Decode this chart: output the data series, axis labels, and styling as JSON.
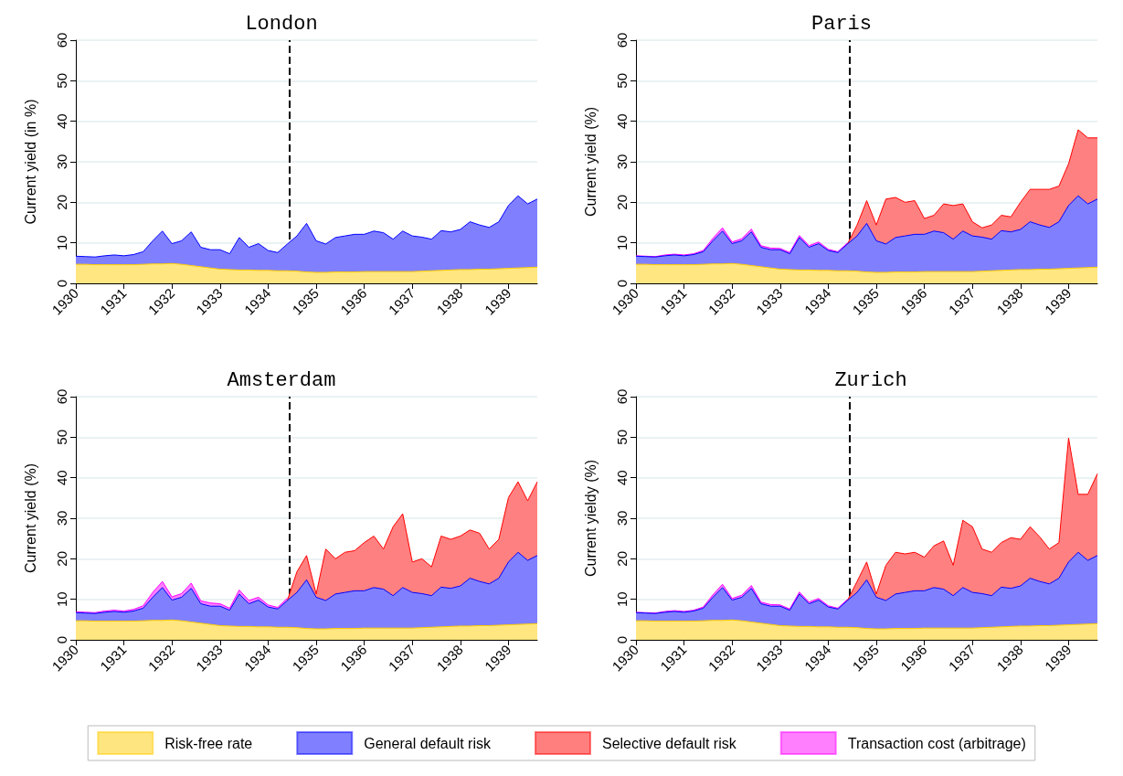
{
  "chart_data": [
    {
      "type": "area",
      "title": "London",
      "ylabel": "Current yield (in %)",
      "stacked": true,
      "grid": "y",
      "x": [
        1930.0,
        1930.2,
        1930.4,
        1930.6,
        1930.8,
        1931.0,
        1931.2,
        1931.4,
        1931.6,
        1931.8,
        1932.0,
        1932.2,
        1932.4,
        1932.6,
        1932.8,
        1933.0,
        1933.2,
        1933.4,
        1933.6,
        1933.8,
        1934.0,
        1934.2,
        1934.4,
        1934.6,
        1934.8,
        1935.0,
        1935.2,
        1935.4,
        1935.6,
        1935.8,
        1936.0,
        1936.2,
        1936.4,
        1936.6,
        1936.8,
        1937.0,
        1937.2,
        1937.4,
        1937.6,
        1937.8,
        1938.0,
        1938.2,
        1938.4,
        1938.6,
        1938.8,
        1939.0,
        1939.2,
        1939.4,
        1939.6
      ],
      "xlim": [
        1930,
        1939.6
      ],
      "xticks": [
        1930,
        1931,
        1932,
        1933,
        1934,
        1935,
        1936,
        1937,
        1938,
        1939
      ],
      "ylim": [
        0,
        60
      ],
      "yticks": [
        0,
        10,
        20,
        30,
        40,
        50,
        60
      ],
      "ref_lines": [
        {
          "axis": "x",
          "value": 1934.45,
          "color": "#000000",
          "line_style": "dashed"
        }
      ],
      "series": [
        {
          "color": "#ffcc00",
          "values": [
            4.7,
            4.7,
            4.6,
            4.6,
            4.6,
            4.6,
            4.6,
            4.7,
            4.8,
            4.8,
            4.9,
            4.7,
            4.4,
            4.1,
            3.8,
            3.5,
            3.4,
            3.3,
            3.3,
            3.2,
            3.2,
            3.1,
            3.1,
            3.0,
            2.8,
            2.7,
            2.7,
            2.8,
            2.8,
            2.8,
            2.9,
            2.9,
            2.9,
            2.9,
            2.9,
            2.9,
            3.0,
            3.1,
            3.2,
            3.3,
            3.4,
            3.4,
            3.5,
            3.5,
            3.6,
            3.7,
            3.8,
            3.9,
            4.0
          ]
        },
        {
          "color": "#0000ff",
          "values": [
            2.0,
            1.9,
            1.9,
            2.2,
            2.4,
            2.2,
            2.5,
            3.1,
            5.7,
            8.1,
            4.9,
            5.8,
            8.3,
            4.8,
            4.5,
            4.8,
            3.9,
            8.0,
            5.6,
            6.6,
            4.9,
            4.5,
            6.6,
            8.7,
            12.0,
            7.8,
            7.0,
            8.5,
            8.9,
            9.3,
            9.2,
            10.0,
            9.6,
            8.0,
            10.0,
            8.8,
            8.4,
            7.8,
            9.8,
            9.4,
            9.9,
            11.8,
            10.9,
            10.3,
            11.6,
            15.5,
            17.8,
            15.7,
            16.8
          ]
        }
      ]
    },
    {
      "type": "area",
      "title": "Paris",
      "ylabel": "Current yield (%)",
      "stacked": true,
      "grid": "y",
      "x": [
        1930.0,
        1930.2,
        1930.4,
        1930.6,
        1930.8,
        1931.0,
        1931.2,
        1931.4,
        1931.6,
        1931.8,
        1932.0,
        1932.2,
        1932.4,
        1932.6,
        1932.8,
        1933.0,
        1933.2,
        1933.4,
        1933.6,
        1933.8,
        1934.0,
        1934.2,
        1934.4,
        1934.6,
        1934.8,
        1935.0,
        1935.2,
        1935.4,
        1935.6,
        1935.8,
        1936.0,
        1936.2,
        1936.4,
        1936.6,
        1936.8,
        1937.0,
        1937.2,
        1937.4,
        1937.6,
        1937.8,
        1938.0,
        1938.2,
        1938.4,
        1938.6,
        1938.8,
        1939.0,
        1939.2,
        1939.4,
        1939.6
      ],
      "xlim": [
        1930,
        1939.6
      ],
      "xticks": [
        1930,
        1931,
        1932,
        1933,
        1934,
        1935,
        1936,
        1937,
        1938,
        1939
      ],
      "ylim": [
        0,
        60
      ],
      "yticks": [
        0,
        10,
        20,
        30,
        40,
        50,
        60
      ],
      "ref_lines": [
        {
          "axis": "x",
          "value": 1934.45,
          "color": "#000000",
          "line_style": "dashed"
        }
      ],
      "series": [
        {
          "color": "#ffcc00",
          "values": [
            4.7,
            4.7,
            4.6,
            4.6,
            4.6,
            4.6,
            4.6,
            4.7,
            4.8,
            4.8,
            4.9,
            4.7,
            4.4,
            4.1,
            3.8,
            3.5,
            3.4,
            3.3,
            3.3,
            3.2,
            3.2,
            3.1,
            3.1,
            3.0,
            2.8,
            2.7,
            2.7,
            2.8,
            2.8,
            2.8,
            2.9,
            2.9,
            2.9,
            2.9,
            2.9,
            2.9,
            3.0,
            3.1,
            3.2,
            3.3,
            3.4,
            3.4,
            3.5,
            3.5,
            3.6,
            3.7,
            3.8,
            3.9,
            4.0
          ]
        },
        {
          "color": "#0000ff",
          "values": [
            2.0,
            1.9,
            1.9,
            2.2,
            2.4,
            2.2,
            2.5,
            3.1,
            5.7,
            8.1,
            4.9,
            5.8,
            8.3,
            4.8,
            4.5,
            4.8,
            3.9,
            8.0,
            5.6,
            6.6,
            4.9,
            4.5,
            6.6,
            8.7,
            12.0,
            7.8,
            7.0,
            8.5,
            8.9,
            9.3,
            9.2,
            10.0,
            9.6,
            8.0,
            10.0,
            8.8,
            8.4,
            7.8,
            9.8,
            9.4,
            9.9,
            11.8,
            10.9,
            10.3,
            11.6,
            15.5,
            17.8,
            15.7,
            16.8
          ]
        },
        {
          "color": "#ff0000",
          "values": [
            null,
            null,
            null,
            null,
            null,
            null,
            null,
            null,
            null,
            null,
            null,
            null,
            null,
            null,
            null,
            null,
            null,
            null,
            null,
            null,
            null,
            null,
            0,
            2.7,
            5.6,
            3.9,
            11.1,
            9.9,
            8.3,
            8.3,
            3.9,
            3.9,
            7.1,
            8.3,
            6.7,
            3.5,
            2.3,
            3.5,
            3.8,
            3.7,
            6.7,
            8.0,
            8.8,
            9.4,
            8.8,
            10.3,
            16.3,
            16.3,
            15.1
          ]
        },
        {
          "color": "#ff00ff",
          "values": [
            0.1,
            0.1,
            0.1,
            0.2,
            0.2,
            0.2,
            0.2,
            0.3,
            0.6,
            0.8,
            0.4,
            0.5,
            0.7,
            0.4,
            0.4,
            0.3,
            0.3,
            0.5,
            0.4,
            0.4,
            0.3,
            0.2,
            0.3,
            null,
            null,
            null,
            null,
            null,
            null,
            null,
            null,
            null,
            null,
            null,
            null,
            null,
            null,
            null,
            null,
            null,
            null,
            null,
            null,
            null,
            null,
            null,
            null,
            null,
            null
          ]
        }
      ]
    },
    {
      "type": "area",
      "title": "Amsterdam",
      "ylabel": "Current yield (%)",
      "stacked": true,
      "grid": "y",
      "x": [
        1930.0,
        1930.2,
        1930.4,
        1930.6,
        1930.8,
        1931.0,
        1931.2,
        1931.4,
        1931.6,
        1931.8,
        1932.0,
        1932.2,
        1932.4,
        1932.6,
        1932.8,
        1933.0,
        1933.2,
        1933.4,
        1933.6,
        1933.8,
        1934.0,
        1934.2,
        1934.4,
        1934.6,
        1934.8,
        1935.0,
        1935.2,
        1935.4,
        1935.6,
        1935.8,
        1936.0,
        1936.2,
        1936.4,
        1936.6,
        1936.8,
        1937.0,
        1937.2,
        1937.4,
        1937.6,
        1937.8,
        1938.0,
        1938.2,
        1938.4,
        1938.6,
        1938.8,
        1939.0,
        1939.2,
        1939.4,
        1939.6
      ],
      "xlim": [
        1930,
        1939.6
      ],
      "xticks": [
        1930,
        1931,
        1932,
        1933,
        1934,
        1935,
        1936,
        1937,
        1938,
        1939
      ],
      "ylim": [
        0,
        60
      ],
      "yticks": [
        0,
        10,
        20,
        30,
        40,
        50,
        60
      ],
      "ref_lines": [
        {
          "axis": "x",
          "value": 1934.45,
          "color": "#000000",
          "line_style": "dashed"
        }
      ],
      "series": [
        {
          "color": "#ffcc00",
          "values": [
            4.7,
            4.7,
            4.6,
            4.6,
            4.6,
            4.6,
            4.6,
            4.7,
            4.8,
            4.8,
            4.9,
            4.7,
            4.4,
            4.1,
            3.8,
            3.5,
            3.4,
            3.3,
            3.3,
            3.2,
            3.2,
            3.1,
            3.1,
            3.0,
            2.8,
            2.7,
            2.7,
            2.8,
            2.8,
            2.8,
            2.9,
            2.9,
            2.9,
            2.9,
            2.9,
            2.9,
            3.0,
            3.1,
            3.2,
            3.3,
            3.4,
            3.4,
            3.5,
            3.5,
            3.6,
            3.7,
            3.8,
            3.9,
            4.0
          ]
        },
        {
          "color": "#0000ff",
          "values": [
            2.0,
            1.9,
            1.9,
            2.2,
            2.4,
            2.2,
            2.5,
            3.1,
            5.7,
            8.1,
            4.9,
            5.8,
            8.3,
            4.8,
            4.5,
            4.8,
            3.9,
            8.0,
            5.6,
            6.6,
            4.9,
            4.5,
            6.6,
            8.7,
            12.0,
            7.8,
            7.0,
            8.5,
            8.9,
            9.3,
            9.2,
            10.0,
            9.6,
            8.0,
            10.0,
            8.8,
            8.4,
            7.8,
            9.8,
            9.4,
            9.9,
            11.8,
            10.9,
            10.3,
            11.6,
            15.5,
            17.8,
            15.7,
            16.8
          ]
        },
        {
          "color": "#ff0000",
          "values": [
            null,
            null,
            null,
            null,
            null,
            null,
            null,
            null,
            null,
            null,
            null,
            null,
            null,
            null,
            null,
            null,
            null,
            null,
            null,
            null,
            null,
            null,
            0,
            5.1,
            6.0,
            0.8,
            12.7,
            8.7,
            9.9,
            9.9,
            11.9,
            12.7,
            9.9,
            17.0,
            18.2,
            7.5,
            8.6,
            7.1,
            12.6,
            12.1,
            12.3,
            11.9,
            11.9,
            8.6,
            9.6,
            15.9,
            17.4,
            14.7,
            18.2
          ]
        },
        {
          "color": "#ff00ff",
          "values": [
            0.2,
            0.2,
            0.2,
            0.3,
            0.3,
            0.3,
            0.4,
            0.6,
            1.2,
            1.5,
            0.8,
            0.9,
            1.3,
            0.7,
            0.8,
            0.6,
            0.5,
            1.0,
            0.8,
            0.7,
            0.5,
            0.4,
            0.6,
            null,
            null,
            null,
            null,
            null,
            null,
            null,
            null,
            null,
            null,
            null,
            null,
            null,
            null,
            null,
            null,
            null,
            null,
            null,
            null,
            null,
            null,
            null,
            null,
            null,
            null
          ]
        }
      ]
    },
    {
      "type": "area",
      "title": "Zurich",
      "ylabel": "Current yieldy (%)",
      "stacked": true,
      "grid": "y",
      "legend": "bottom",
      "x": [
        1930.0,
        1930.2,
        1930.4,
        1930.6,
        1930.8,
        1931.0,
        1931.2,
        1931.4,
        1931.6,
        1931.8,
        1932.0,
        1932.2,
        1932.4,
        1932.6,
        1932.8,
        1933.0,
        1933.2,
        1933.4,
        1933.6,
        1933.8,
        1934.0,
        1934.2,
        1934.4,
        1934.6,
        1934.8,
        1935.0,
        1935.2,
        1935.4,
        1935.6,
        1935.8,
        1936.0,
        1936.2,
        1936.4,
        1936.6,
        1936.8,
        1937.0,
        1937.2,
        1937.4,
        1937.6,
        1937.8,
        1938.0,
        1938.2,
        1938.4,
        1938.6,
        1938.8,
        1939.0,
        1939.2,
        1939.4,
        1939.6
      ],
      "xlim": [
        1930,
        1939.6
      ],
      "xticks": [
        1930,
        1931,
        1932,
        1933,
        1934,
        1935,
        1936,
        1937,
        1938,
        1939
      ],
      "ylim": [
        0,
        60
      ],
      "yticks": [
        0,
        10,
        20,
        30,
        40,
        50,
        60
      ],
      "ref_lines": [
        {
          "axis": "x",
          "value": 1934.45,
          "color": "#000000",
          "line_style": "dashed"
        }
      ],
      "series": [
        {
          "name": "Risk-free rate",
          "color": "#ffcc00",
          "values": [
            4.7,
            4.7,
            4.6,
            4.6,
            4.6,
            4.6,
            4.6,
            4.7,
            4.8,
            4.8,
            4.9,
            4.7,
            4.4,
            4.1,
            3.8,
            3.5,
            3.4,
            3.3,
            3.3,
            3.2,
            3.2,
            3.1,
            3.1,
            3.0,
            2.8,
            2.7,
            2.7,
            2.8,
            2.8,
            2.8,
            2.9,
            2.9,
            2.9,
            2.9,
            2.9,
            2.9,
            3.0,
            3.1,
            3.2,
            3.3,
            3.4,
            3.4,
            3.5,
            3.5,
            3.6,
            3.7,
            3.8,
            3.9,
            4.0
          ]
        },
        {
          "name": "General default risk",
          "color": "#0000ff",
          "values": [
            2.0,
            1.9,
            1.9,
            2.2,
            2.4,
            2.2,
            2.5,
            3.1,
            5.7,
            8.1,
            4.9,
            5.8,
            8.3,
            4.8,
            4.5,
            4.8,
            3.9,
            8.0,
            5.6,
            6.6,
            4.9,
            4.5,
            6.6,
            8.7,
            12.0,
            7.8,
            7.0,
            8.5,
            8.9,
            9.3,
            9.2,
            10.0,
            9.6,
            8.0,
            10.0,
            8.8,
            8.4,
            7.8,
            9.8,
            9.4,
            9.9,
            11.8,
            10.9,
            10.3,
            11.6,
            15.5,
            17.8,
            15.7,
            16.8
          ]
        },
        {
          "name": "Selective default risk",
          "color": "#ff0000",
          "values": [
            null,
            null,
            null,
            null,
            null,
            null,
            null,
            null,
            null,
            null,
            null,
            null,
            null,
            null,
            null,
            null,
            null,
            null,
            null,
            null,
            null,
            null,
            0,
            2.7,
            4.4,
            0.8,
            8.7,
            10.3,
            9.5,
            9.5,
            8.3,
            10.3,
            11.9,
            7.5,
            16.6,
            16.2,
            11.0,
            10.7,
            11.0,
            12.5,
            11.5,
            12.7,
            11.0,
            8.6,
            8.8,
            30.6,
            14.3,
            16.3,
            20.2
          ]
        },
        {
          "name": "Transaction cost (arbitrage)",
          "color": "#ff00ff",
          "values": [
            0.1,
            0.1,
            0.1,
            0.2,
            0.2,
            0.2,
            0.2,
            0.3,
            0.6,
            0.8,
            0.4,
            0.5,
            0.7,
            0.4,
            0.4,
            0.3,
            0.3,
            0.5,
            0.4,
            0.4,
            0.3,
            0.2,
            0.3,
            null,
            null,
            null,
            null,
            null,
            null,
            null,
            null,
            null,
            null,
            null,
            null,
            null,
            null,
            null,
            null,
            null,
            null,
            null,
            null,
            null,
            null,
            null,
            null,
            null,
            null
          ]
        }
      ]
    }
  ]
}
